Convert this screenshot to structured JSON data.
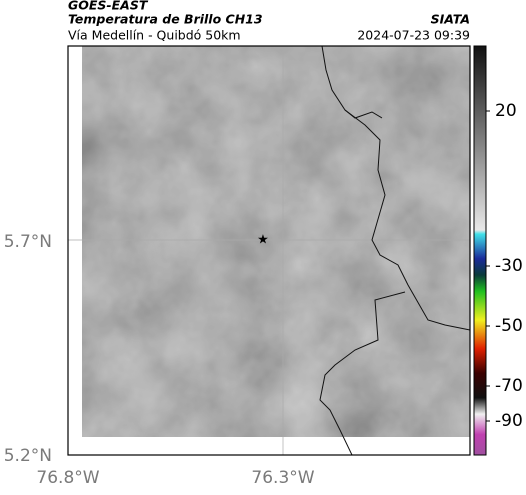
{
  "header": {
    "source": "GOES-EAST",
    "title": "Temperatura de Brillo CH13",
    "subtitle": "Vía Medellín - Quibdó 50km",
    "org": "SIATA",
    "datetime": "2024-07-23 09:39"
  },
  "map": {
    "lat_ticks": [
      "5.7°N",
      "5.2°N"
    ],
    "lon_ticks": [
      "76.8°W",
      "76.3°W"
    ]
  },
  "colorbar": {
    "ticks": [
      20,
      -30,
      -50,
      -70,
      -90
    ]
  }
}
